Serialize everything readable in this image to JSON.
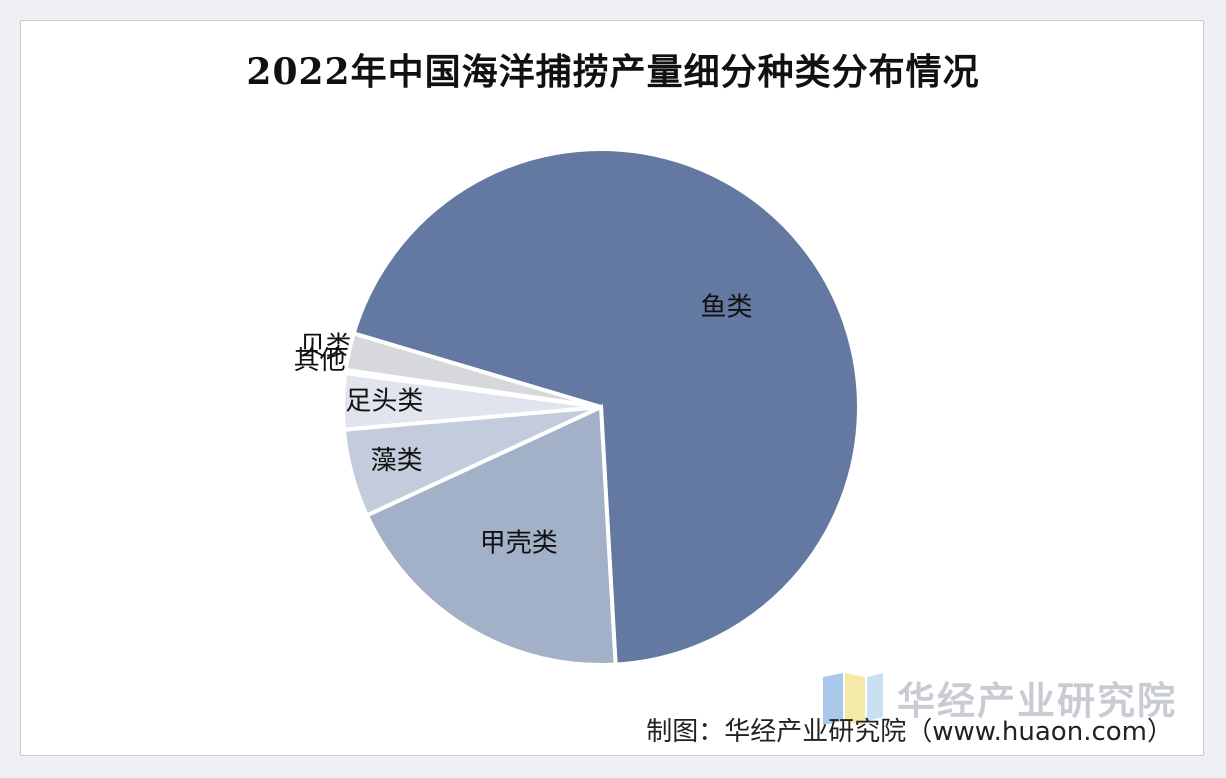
{
  "chart_data": {
    "type": "pie",
    "title": "2022年中国海洋捕捞产量细分种类分布情况",
    "slices": [
      {
        "label": "鱼类",
        "value": 69.5,
        "color": "#6479a1"
      },
      {
        "label": "甲壳类",
        "value": 19.0,
        "color": "#a2b0c8"
      },
      {
        "label": "藻类",
        "value": 5.5,
        "color": "#c3ccdc"
      },
      {
        "label": "足头类",
        "value": 3.5,
        "color": "#dfe4ed"
      },
      {
        "label": "贝类",
        "value": 0.2,
        "color": "#f0f2f6"
      },
      {
        "label": "其他",
        "value": 2.3,
        "color": "#d6d8dc"
      }
    ]
  },
  "watermark": {
    "text": "华经产业研究院"
  },
  "credit": {
    "text": "制图：华经产业研究院（www.huaon.com）"
  }
}
